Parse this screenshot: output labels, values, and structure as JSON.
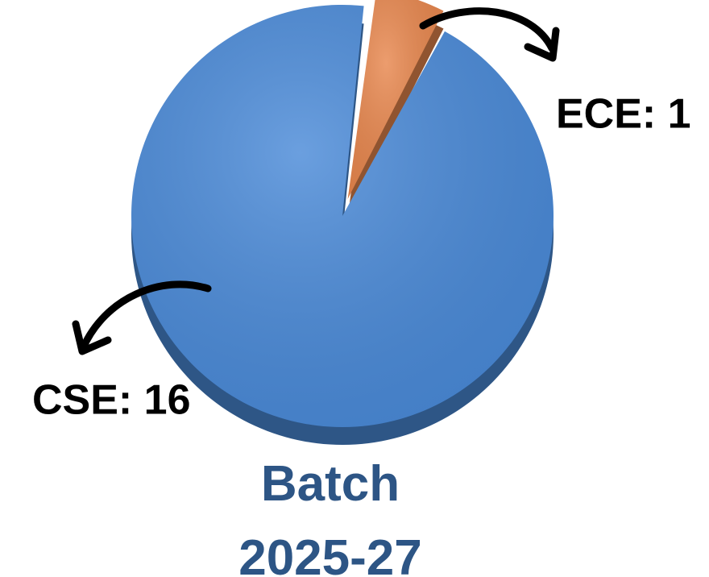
{
  "chart_data": {
    "type": "pie",
    "title": "Batch 2025-27",
    "values": [
      16,
      1
    ],
    "value_labels": [
      "CSE: 16",
      "ECE: 1"
    ],
    "colors": [
      "#4a8ad8",
      "#e8874e"
    ]
  }
}
